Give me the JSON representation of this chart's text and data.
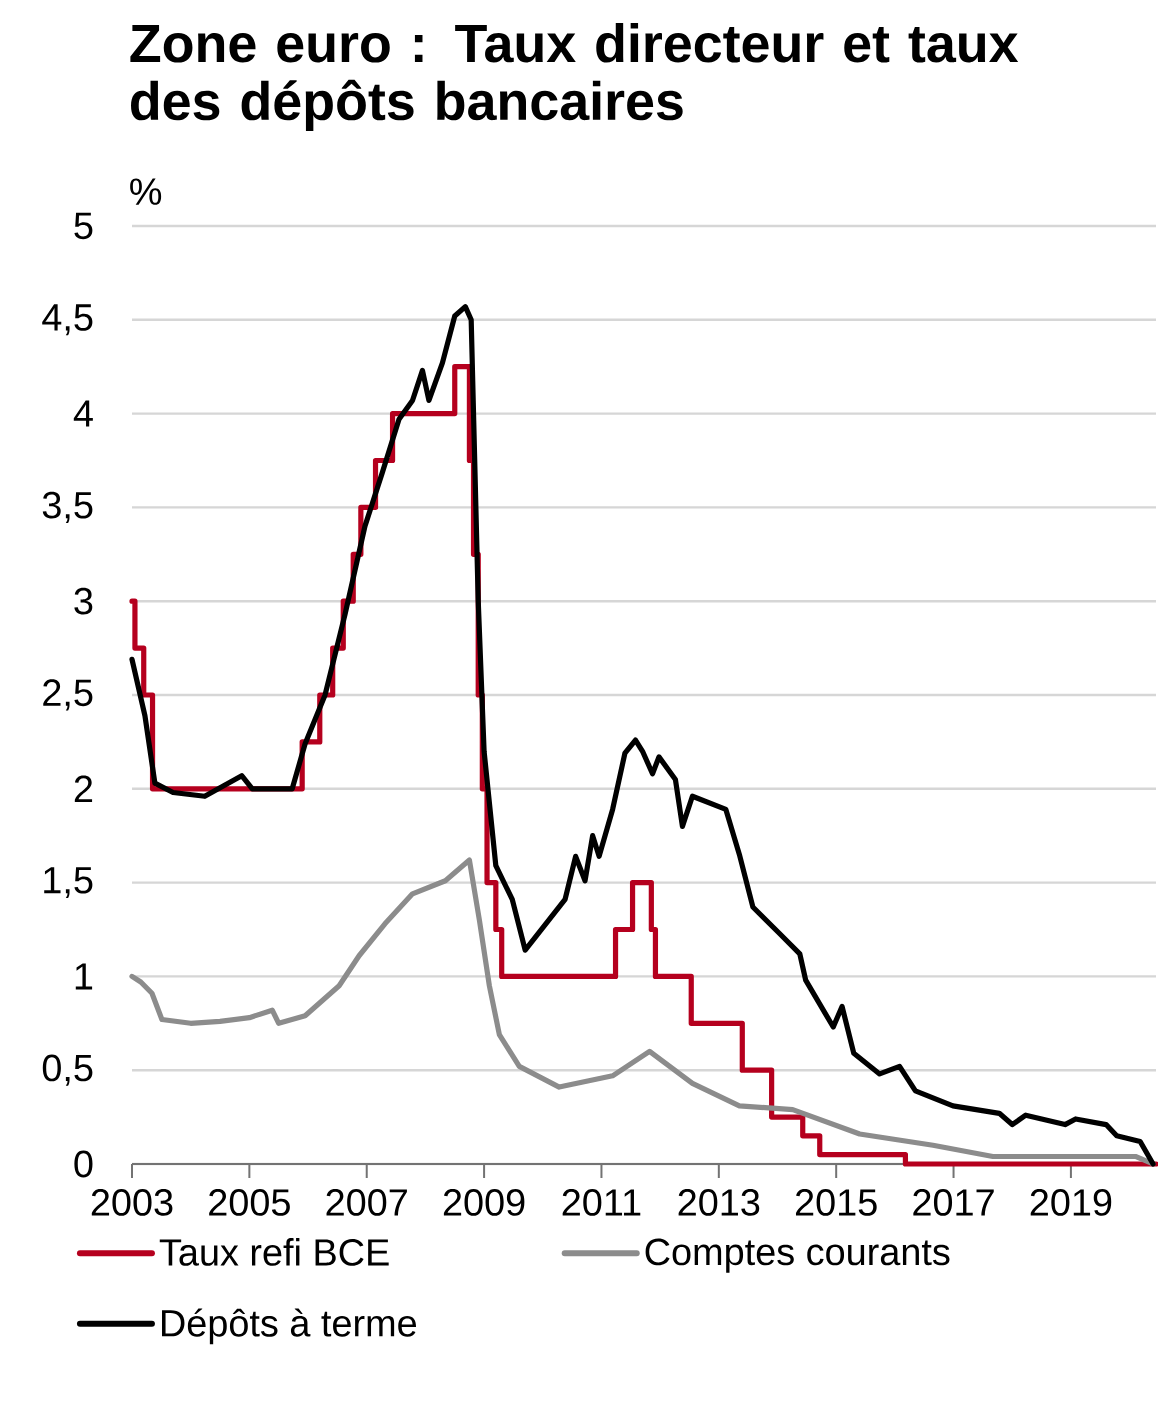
{
  "chart_data": {
    "type": "line",
    "title": "Zone euro : Taux directeur et taux des dépôts bancaires",
    "ylabel": "%",
    "xlim": [
      2003,
      2020.45
    ],
    "xticks": [
      2003,
      2005,
      2007,
      2009,
      2011,
      2013,
      2015,
      2017,
      2019
    ],
    "ylim": [
      0,
      5
    ],
    "yticks": [
      0,
      {
        "value": 0.5,
        "label": "0,5"
      },
      1,
      {
        "value": 1.5,
        "label": "1,5"
      },
      2,
      {
        "value": 2.5,
        "label": "2,5"
      },
      3,
      {
        "value": 3.5,
        "label": "3,5"
      },
      4,
      {
        "value": 4.5,
        "label": "4,5"
      },
      5
    ],
    "grid": "y",
    "legend": "bottom",
    "marker": "none",
    "line_style": "solid",
    "series": [
      {
        "name": "Taux refi BCE",
        "type": "step",
        "color": "#b5001e",
        "x": [
          2003.0,
          2003.05,
          2003.2,
          2003.35,
          2005.9,
          2006.2,
          2006.42,
          2006.6,
          2006.77,
          2006.9,
          2007.15,
          2007.44,
          2008.5,
          2008.75,
          2008.82,
          2008.9,
          2008.97,
          2009.05,
          2009.2,
          2009.3,
          2009.35,
          2011.24,
          2011.53,
          2011.85,
          2011.92,
          2012.53,
          2013.4,
          2013.9,
          2014.43,
          2014.72,
          2016.18,
          2020.45
        ],
        "values": [
          3.0,
          2.75,
          2.5,
          2.0,
          2.25,
          2.5,
          2.75,
          3.0,
          3.25,
          3.5,
          3.75,
          4.0,
          4.25,
          3.75,
          3.25,
          2.5,
          2.0,
          1.5,
          1.25,
          1.0,
          1.0,
          1.25,
          1.5,
          1.25,
          1.0,
          0.75,
          0.5,
          0.25,
          0.15,
          0.05,
          0.0,
          0.0
        ]
      },
      {
        "name": "Comptes courants",
        "color": "#8c8c8c",
        "x": [
          2003.0,
          2003.15,
          2003.34,
          2003.51,
          2004.0,
          2004.5,
          2005.0,
          2005.39,
          2005.5,
          2005.95,
          2006.53,
          2006.87,
          2007.31,
          2007.78,
          2008.34,
          2008.75,
          2008.92,
          2009.09,
          2009.26,
          2009.6,
          2010.28,
          2011.19,
          2011.82,
          2012.55,
          2013.35,
          2014.26,
          2015.4,
          2016.65,
          2017.67,
          2020.1,
          2020.4
        ],
        "values": [
          1.0,
          0.97,
          0.91,
          0.77,
          0.75,
          0.76,
          0.78,
          0.82,
          0.75,
          0.79,
          0.95,
          1.11,
          1.28,
          1.44,
          1.51,
          1.62,
          1.3,
          0.95,
          0.69,
          0.52,
          0.41,
          0.47,
          0.6,
          0.43,
          0.31,
          0.29,
          0.16,
          0.1,
          0.04,
          0.04,
          0.0
        ]
      },
      {
        "name": "Dépôts à terme",
        "color": "#000000",
        "x": [
          2003.0,
          2003.22,
          2003.39,
          2003.7,
          2004.24,
          2004.87,
          2005.05,
          2005.73,
          2005.95,
          2006.29,
          2006.63,
          2006.97,
          2007.26,
          2007.55,
          2007.78,
          2007.95,
          2008.06,
          2008.29,
          2008.5,
          2008.68,
          2008.78,
          2008.9,
          2009.0,
          2009.2,
          2009.48,
          2009.7,
          2010.38,
          2010.56,
          2010.72,
          2010.85,
          2010.96,
          2011.19,
          2011.4,
          2011.58,
          2011.7,
          2011.87,
          2011.98,
          2012.26,
          2012.38,
          2012.55,
          2013.12,
          2013.35,
          2013.58,
          2014.03,
          2014.38,
          2014.48,
          2014.95,
          2015.1,
          2015.3,
          2015.74,
          2016.08,
          2016.35,
          2016.99,
          2017.78,
          2018.0,
          2018.23,
          2018.9,
          2019.08,
          2019.6,
          2019.78,
          2020.18,
          2020.4
        ],
        "values": [
          2.69,
          2.39,
          2.03,
          1.98,
          1.96,
          2.07,
          2.0,
          2.0,
          2.24,
          2.5,
          2.93,
          3.4,
          3.68,
          3.97,
          4.07,
          4.23,
          4.07,
          4.27,
          4.52,
          4.57,
          4.5,
          3.0,
          2.2,
          1.59,
          1.41,
          1.14,
          1.41,
          1.64,
          1.51,
          1.75,
          1.64,
          1.89,
          2.19,
          2.26,
          2.2,
          2.08,
          2.17,
          2.05,
          1.8,
          1.96,
          1.89,
          1.65,
          1.37,
          1.23,
          1.12,
          0.98,
          0.73,
          0.84,
          0.59,
          0.48,
          0.52,
          0.39,
          0.31,
          0.27,
          0.21,
          0.26,
          0.21,
          0.24,
          0.21,
          0.15,
          0.12,
          0.0
        ]
      }
    ]
  }
}
